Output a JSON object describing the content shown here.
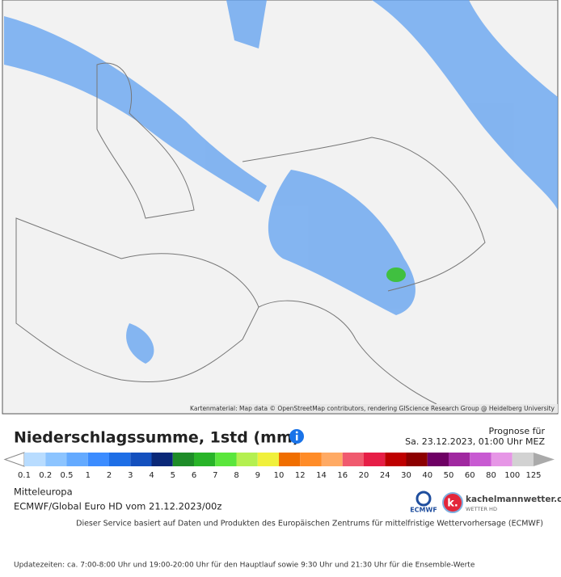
{
  "map": {
    "attribution": "Kartenmaterial: Map data © OpenStreetMap contributors, rendering GIScience Research Group @ Heidelberg University"
  },
  "header": {
    "title": "Niederschlagssumme, 1std (mm)",
    "forecast_label": "Prognose für",
    "forecast_time": "Sa. 23.12.2023, 01:00 Uhr MEZ"
  },
  "legend": {
    "labels": [
      "0.1",
      "0.2",
      "0.5",
      "1",
      "2",
      "3",
      "4",
      "5",
      "6",
      "7",
      "8",
      "9",
      "10",
      "12",
      "14",
      "16",
      "20",
      "24",
      "30",
      "40",
      "50",
      "60",
      "80",
      "100",
      "125"
    ],
    "colors": [
      "#b8dcff",
      "#8cc4ff",
      "#64aaff",
      "#3c8cff",
      "#1e6ee6",
      "#1450be",
      "#0a2878",
      "#1e8c28",
      "#28b428",
      "#5ae63c",
      "#b4f050",
      "#f0f03c",
      "#f06e00",
      "#ff8c28",
      "#ffaa64",
      "#f05a6e",
      "#e61e46",
      "#be0000",
      "#8c0000",
      "#6e0064",
      "#a028a0",
      "#c85ad2",
      "#e696e6",
      "#d2d2d2"
    ]
  },
  "info": {
    "region": "Mitteleuropa",
    "model": "ECMWF/Global Euro HD vom 21.12.2023/00z",
    "logo_ecmwf": "ECMWF",
    "logo_km": "kachelmannwetter.com",
    "logo_km_sub": "WETTER HD",
    "service": "Dieser Service basiert auf Daten und Produkten des Europäischen Zentrums für mittelfristige Wettervorhersage (ECMWF)",
    "updates": "Updatezeiten: ca. 7:00-8:00 Uhr und 19:00-20:00 Uhr für den Hauptlauf sowie 9:30 Uhr und 21:30 Uhr für die Ensemble-Werte"
  }
}
